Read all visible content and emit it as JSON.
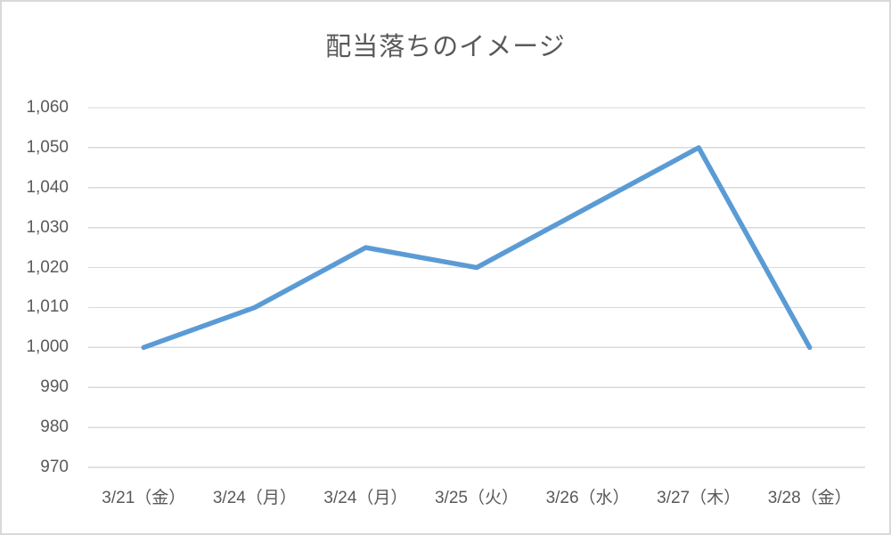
{
  "colors": {
    "line": "#5B9BD5",
    "gridline": "#D9D9D9",
    "axis_line": "#C3C3C3",
    "text": "#595959",
    "border": "#D9D9D9",
    "background": "#FFFFFF"
  },
  "chart_data": {
    "type": "line",
    "title": "配当落ちのイメージ",
    "categories": [
      "3/21（金）",
      "3/24（月）",
      "3/24（月）",
      "3/25（火）",
      "3/26（水）",
      "3/27（木）",
      "3/28（金）"
    ],
    "values": [
      1000,
      1010,
      1025,
      1020,
      1035,
      1050,
      1000
    ],
    "ylim": [
      970,
      1060
    ],
    "yticks": [
      970,
      980,
      990,
      1000,
      1010,
      1020,
      1030,
      1040,
      1050,
      1060
    ],
    "ytick_labels": [
      "970",
      "980",
      "990",
      "1,000",
      "1,010",
      "1,020",
      "1,030",
      "1,040",
      "1,050",
      "1,060"
    ],
    "xlabel": "",
    "ylabel": "",
    "grid": true,
    "legend": false
  }
}
